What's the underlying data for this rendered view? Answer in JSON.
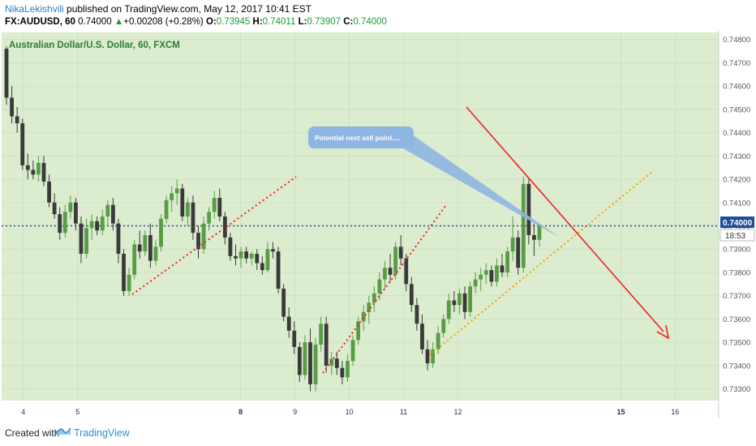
{
  "header": {
    "author": "NikaLekishvili",
    "published": " published on TradingView.com, May 12, 2017 10:41 EST",
    "symbol": "FX:AUDUSD, 60",
    "last": "0.74000",
    "change": "+0.00208 (+0.28%)",
    "o_label": "O:",
    "o": "0.73945",
    "h_label": "H:",
    "h": "0.74011",
    "l_label": "L:",
    "l": "0.73907",
    "c_label": "C:",
    "c": "0.74000",
    "up_arrow": "▲"
  },
  "footer": {
    "created_with": "Created with",
    "brand": "TradingView"
  },
  "chart_data": {
    "type": "candlestick",
    "title": "Australian Dollar/U.S. Dollar, 60, FXCM",
    "price_ticks": [
      "0.74800",
      "0.74700",
      "0.74600",
      "0.74500",
      "0.74400",
      "0.74300",
      "0.74200",
      "0.74100",
      "0.74000",
      "0.73900",
      "0.73800",
      "0.73700",
      "0.73600",
      "0.73500",
      "0.73400",
      "0.73300"
    ],
    "ylim": [
      0.7325,
      0.7483
    ],
    "date_ticks": [
      "4",
      "5",
      "8",
      "9",
      "10",
      "11",
      "12",
      "15",
      "16"
    ],
    "bold_date_ticks": [
      "8",
      "15"
    ],
    "x_range_days": [
      3.6,
      16.8
    ],
    "current_price_label": "0.74000",
    "countdown_label": "18:53",
    "current_price": 0.74,
    "annotation": "Potential next sell point....",
    "candles_ohlc_approx": [
      [
        0.7476,
        0.7477,
        0.7452,
        0.7455
      ],
      [
        0.7455,
        0.746,
        0.7444,
        0.7447
      ],
      [
        0.7447,
        0.7451,
        0.744,
        0.7444
      ],
      [
        0.7444,
        0.7446,
        0.7424,
        0.7426
      ],
      [
        0.7426,
        0.7431,
        0.742,
        0.7424
      ],
      [
        0.7424,
        0.7428,
        0.742,
        0.7422
      ],
      [
        0.7422,
        0.743,
        0.7419,
        0.7427
      ],
      [
        0.7427,
        0.743,
        0.7417,
        0.7419
      ],
      [
        0.7419,
        0.7422,
        0.7408,
        0.741
      ],
      [
        0.741,
        0.7414,
        0.7403,
        0.7405
      ],
      [
        0.7405,
        0.7408,
        0.7394,
        0.7397
      ],
      [
        0.7397,
        0.7409,
        0.7395,
        0.7406
      ],
      [
        0.7406,
        0.7413,
        0.7403,
        0.741
      ],
      [
        0.741,
        0.7412,
        0.7398,
        0.7401
      ],
      [
        0.7401,
        0.7404,
        0.7384,
        0.7388
      ],
      [
        0.7388,
        0.7403,
        0.7386,
        0.7399
      ],
      [
        0.7399,
        0.7405,
        0.7394,
        0.7402
      ],
      [
        0.7402,
        0.7404,
        0.7396,
        0.7398
      ],
      [
        0.7398,
        0.7407,
        0.7396,
        0.7404
      ],
      [
        0.7404,
        0.7411,
        0.74,
        0.7409
      ],
      [
        0.7409,
        0.7412,
        0.7398,
        0.7401
      ],
      [
        0.7401,
        0.7403,
        0.7384,
        0.7388
      ],
      [
        0.7388,
        0.739,
        0.737,
        0.7372
      ],
      [
        0.7372,
        0.7382,
        0.737,
        0.7379
      ],
      [
        0.7379,
        0.7394,
        0.7377,
        0.7392
      ],
      [
        0.7392,
        0.7398,
        0.7386,
        0.7389
      ],
      [
        0.7389,
        0.7398,
        0.7387,
        0.7396
      ],
      [
        0.7396,
        0.7401,
        0.7382,
        0.7385
      ],
      [
        0.7385,
        0.7394,
        0.7383,
        0.7391
      ],
      [
        0.7391,
        0.7405,
        0.7389,
        0.7403
      ],
      [
        0.7403,
        0.7413,
        0.7401,
        0.7411
      ],
      [
        0.7411,
        0.7417,
        0.7406,
        0.7414
      ],
      [
        0.7414,
        0.742,
        0.7409,
        0.7416
      ],
      [
        0.7416,
        0.7418,
        0.7402,
        0.7404
      ],
      [
        0.7404,
        0.7412,
        0.74,
        0.741
      ],
      [
        0.741,
        0.7413,
        0.7394,
        0.7397
      ],
      [
        0.7397,
        0.74,
        0.7386,
        0.739
      ],
      [
        0.739,
        0.7404,
        0.7388,
        0.7401
      ],
      [
        0.7401,
        0.7408,
        0.7398,
        0.7406
      ],
      [
        0.7406,
        0.7415,
        0.7403,
        0.7412
      ],
      [
        0.7412,
        0.7416,
        0.7402,
        0.7404
      ],
      [
        0.7404,
        0.7406,
        0.7392,
        0.7395
      ],
      [
        0.7395,
        0.7397,
        0.7385,
        0.7387
      ],
      [
        0.7387,
        0.7392,
        0.7383,
        0.7386
      ],
      [
        0.7386,
        0.7391,
        0.7382,
        0.7389
      ],
      [
        0.7389,
        0.7391,
        0.7384,
        0.7386
      ],
      [
        0.7386,
        0.7389,
        0.7383,
        0.7388
      ],
      [
        0.7388,
        0.739,
        0.7381,
        0.7384
      ],
      [
        0.7384,
        0.7387,
        0.7379,
        0.7381
      ],
      [
        0.7381,
        0.7393,
        0.738,
        0.739
      ],
      [
        0.739,
        0.7393,
        0.7386,
        0.7389
      ],
      [
        0.7389,
        0.7391,
        0.7371,
        0.7373
      ],
      [
        0.7373,
        0.7375,
        0.7359,
        0.7361
      ],
      [
        0.7361,
        0.7365,
        0.7352,
        0.7355
      ],
      [
        0.7355,
        0.7359,
        0.7345,
        0.7348
      ],
      [
        0.7348,
        0.735,
        0.7333,
        0.7336
      ],
      [
        0.7336,
        0.7353,
        0.7334,
        0.735
      ],
      [
        0.735,
        0.7356,
        0.7329,
        0.7332
      ],
      [
        0.7332,
        0.7352,
        0.7329,
        0.7349
      ],
      [
        0.7349,
        0.7361,
        0.7346,
        0.7358
      ],
      [
        0.7358,
        0.7361,
        0.7337,
        0.734
      ],
      [
        0.734,
        0.7346,
        0.7336,
        0.7343
      ],
      [
        0.7343,
        0.7346,
        0.7336,
        0.7339
      ],
      [
        0.7339,
        0.7342,
        0.7332,
        0.7335
      ],
      [
        0.7335,
        0.7345,
        0.7333,
        0.7342
      ],
      [
        0.7342,
        0.7353,
        0.734,
        0.7351
      ],
      [
        0.7351,
        0.7361,
        0.7349,
        0.7359
      ],
      [
        0.7359,
        0.7366,
        0.7355,
        0.7363
      ],
      [
        0.7363,
        0.737,
        0.7358,
        0.7367
      ],
      [
        0.7367,
        0.7374,
        0.7363,
        0.7371
      ],
      [
        0.7371,
        0.738,
        0.7368,
        0.7377
      ],
      [
        0.7377,
        0.7385,
        0.7373,
        0.7382
      ],
      [
        0.7382,
        0.7388,
        0.7376,
        0.7379
      ],
      [
        0.7379,
        0.7393,
        0.7377,
        0.7391
      ],
      [
        0.7391,
        0.7396,
        0.7383,
        0.7386
      ],
      [
        0.7386,
        0.7388,
        0.7372,
        0.7375
      ],
      [
        0.7375,
        0.7378,
        0.7363,
        0.7366
      ],
      [
        0.7366,
        0.7369,
        0.7355,
        0.7358
      ],
      [
        0.7358,
        0.7362,
        0.7345,
        0.7347
      ],
      [
        0.7347,
        0.7351,
        0.7338,
        0.7341
      ],
      [
        0.7341,
        0.735,
        0.7339,
        0.7347
      ],
      [
        0.7347,
        0.7357,
        0.7345,
        0.7354
      ],
      [
        0.7354,
        0.7362,
        0.7352,
        0.736
      ],
      [
        0.736,
        0.7371,
        0.7358,
        0.7368
      ],
      [
        0.7368,
        0.7372,
        0.7363,
        0.7366
      ],
      [
        0.7366,
        0.7373,
        0.7362,
        0.7371
      ],
      [
        0.7371,
        0.7374,
        0.736,
        0.7363
      ],
      [
        0.7363,
        0.7376,
        0.7361,
        0.7374
      ],
      [
        0.7374,
        0.738,
        0.7371,
        0.7377
      ],
      [
        0.7377,
        0.7382,
        0.7372,
        0.7379
      ],
      [
        0.7379,
        0.7384,
        0.7375,
        0.7381
      ],
      [
        0.7381,
        0.7383,
        0.7374,
        0.7376
      ],
      [
        0.7376,
        0.7386,
        0.7374,
        0.7383
      ],
      [
        0.7383,
        0.7388,
        0.7378,
        0.738
      ],
      [
        0.738,
        0.7391,
        0.7378,
        0.7389
      ],
      [
        0.7389,
        0.7404,
        0.7385,
        0.7395
      ],
      [
        0.7395,
        0.7398,
        0.7379,
        0.7382
      ],
      [
        0.7382,
        0.7421,
        0.738,
        0.7418
      ],
      [
        0.7418,
        0.742,
        0.7392,
        0.7396
      ],
      [
        0.7396,
        0.7401,
        0.7387,
        0.7394
      ],
      [
        0.7394,
        0.7401,
        0.7391,
        0.74
      ]
    ]
  },
  "colors": {
    "plot_bg": "#dbeccf",
    "grid": "#c8dcbb",
    "up_candle": "#5a9b46",
    "down_candle": "#3a3a3a",
    "title_green": "#2e7d32",
    "price_line": "#1f4e99",
    "red": "#ee2222",
    "orange": "#f5a000",
    "callout": "#8fb5e2"
  }
}
